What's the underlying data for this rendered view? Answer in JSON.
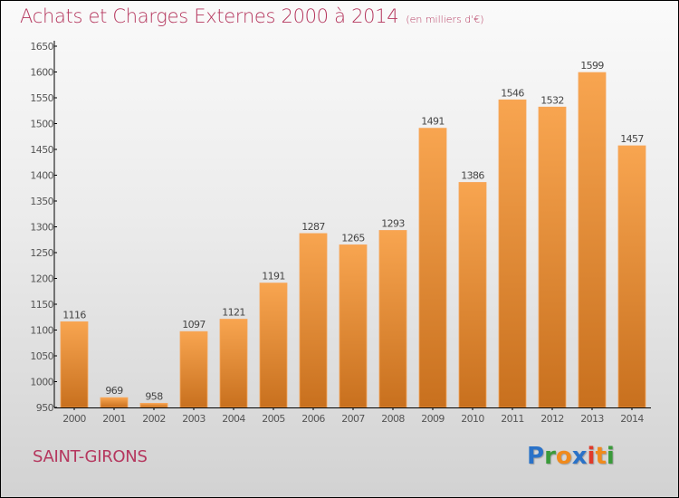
{
  "title": "Achats et Charges Externes 2000 à 2014",
  "unit": "(en milliers d'€)",
  "city": "SAINT-GIRONS",
  "logo": {
    "letters": [
      {
        "ch": "P",
        "color": "#2a72c8"
      },
      {
        "ch": "r",
        "color": "#3a9a3a"
      },
      {
        "ch": "o",
        "color": "#f08a1c"
      },
      {
        "ch": "x",
        "color": "#2a72c8"
      },
      {
        "ch": "i",
        "color": "#e03a2a"
      },
      {
        "ch": "t",
        "color": "#f08a1c"
      },
      {
        "ch": "i",
        "color": "#3a9a3a"
      }
    ]
  },
  "colors": {
    "title": "#b5375e",
    "bar_top": "#f8a550",
    "bar_bottom": "#c8701e"
  },
  "chart_data": {
    "type": "bar",
    "title": "Achats et Charges Externes 2000 à 2014",
    "subtitle": "(en milliers d'€)",
    "xlabel": "",
    "ylabel": "",
    "categories": [
      "2000",
      "2001",
      "2002",
      "2003",
      "2004",
      "2005",
      "2006",
      "2007",
      "2008",
      "2009",
      "2010",
      "2011",
      "2012",
      "2013",
      "2014"
    ],
    "values": [
      1116,
      969,
      958,
      1097,
      1121,
      1191,
      1287,
      1265,
      1293,
      1491,
      1386,
      1546,
      1532,
      1599,
      1457
    ],
    "ylim": [
      950,
      1650
    ],
    "yticks": [
      950,
      1000,
      1050,
      1100,
      1150,
      1200,
      1250,
      1300,
      1350,
      1400,
      1450,
      1500,
      1550,
      1600,
      1650
    ],
    "grid": false,
    "legend": "none",
    "data_labels": true
  }
}
